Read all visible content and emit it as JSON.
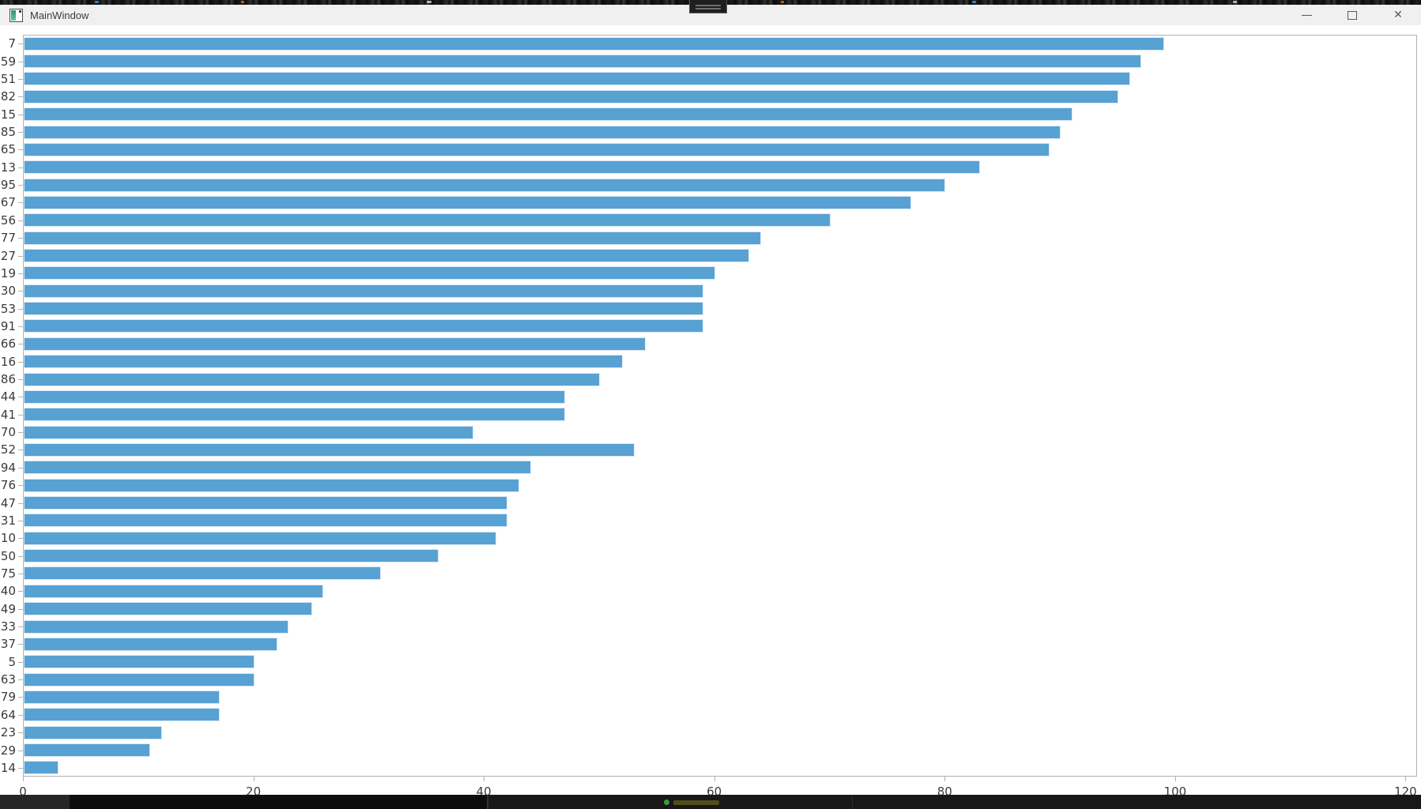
{
  "window": {
    "title": "MainWindow",
    "controls": {
      "minimize_icon": "minimize",
      "maximize_icon": "maximize",
      "close_icon": "✕"
    }
  },
  "chart_data": {
    "type": "bar",
    "orientation": "horizontal",
    "title": "",
    "xlabel": "",
    "ylabel": "",
    "grid": false,
    "legend": null,
    "xlim": [
      0,
      121
    ],
    "xticks": [
      0,
      20,
      40,
      60,
      80,
      100,
      120
    ],
    "categories": [
      "7",
      "59",
      "51",
      "82",
      "15",
      "85",
      "65",
      "13",
      "95",
      "67",
      "56",
      "77",
      "27",
      "19",
      "30",
      "53",
      "91",
      "66",
      "16",
      "86",
      "44",
      "41",
      "70",
      "52",
      "94",
      "76",
      "47",
      "31",
      "10",
      "50",
      "75",
      "40",
      "49",
      "33",
      "37",
      "5",
      "63",
      "79",
      "64",
      "23",
      "29",
      "14"
    ],
    "values": [
      99,
      97,
      96,
      95,
      91,
      90,
      89,
      83,
      80,
      77,
      70,
      64,
      63,
      60,
      59,
      59,
      59,
      54,
      52,
      50,
      47,
      47,
      39,
      53,
      44,
      43,
      42,
      42,
      41,
      36,
      31,
      26,
      25,
      23,
      22,
      20,
      20,
      17,
      17,
      12,
      11,
      3
    ],
    "bar_color": "#58a1d3",
    "bar_edge_color": "#d7e8f6",
    "axis_color": "#b2b2b2",
    "tick_label_color": "#3a3a3a"
  }
}
